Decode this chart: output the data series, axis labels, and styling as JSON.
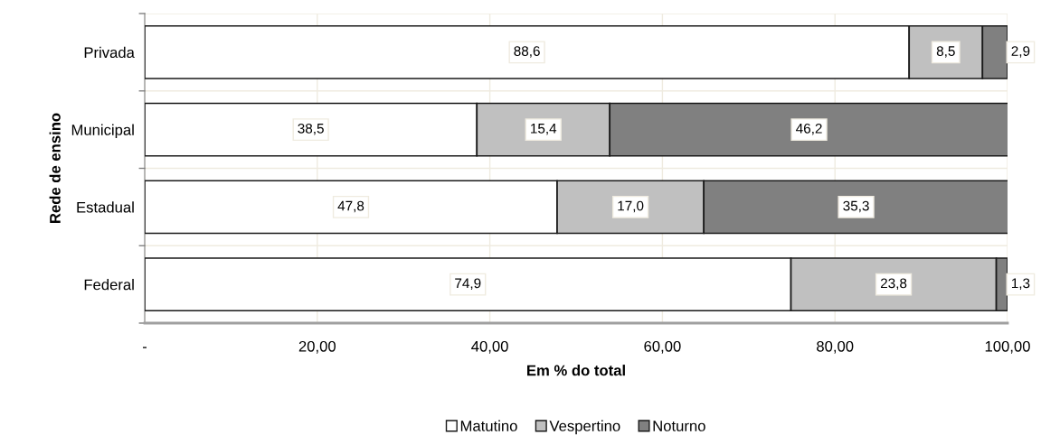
{
  "chart_data": {
    "type": "bar",
    "orientation": "horizontal",
    "stacked": true,
    "categories": [
      "Privada",
      "Municipal",
      "Estadual",
      "Federal"
    ],
    "series": [
      {
        "name": "Matutino",
        "color": "#ffffff",
        "values": [
          88.6,
          38.5,
          47.8,
          74.9
        ],
        "value_labels": [
          "88,6",
          "38,5",
          "47,8",
          "74,9"
        ]
      },
      {
        "name": "Vespertino",
        "color": "#c0c0c0",
        "values": [
          8.5,
          15.4,
          17.0,
          23.8
        ],
        "value_labels": [
          "8,5",
          "15,4",
          "17,0",
          "23,8"
        ]
      },
      {
        "name": "Noturno",
        "color": "#808080",
        "values": [
          2.9,
          46.2,
          35.3,
          1.3
        ],
        "value_labels": [
          "2,9",
          "46,2",
          "35,3",
          "1,3"
        ]
      }
    ],
    "xlim": [
      0,
      100
    ],
    "xticks": [
      {
        "value": 0,
        "label": "-"
      },
      {
        "value": 20,
        "label": "20,00"
      },
      {
        "value": 40,
        "label": "40,00"
      },
      {
        "value": 60,
        "label": "60,00"
      },
      {
        "value": 80,
        "label": "80,00"
      },
      {
        "value": 100,
        "label": "100,00"
      }
    ],
    "xlabel": "Em % do total",
    "ylabel": "Rede de ensino",
    "grid": true,
    "legend": "bottom"
  }
}
